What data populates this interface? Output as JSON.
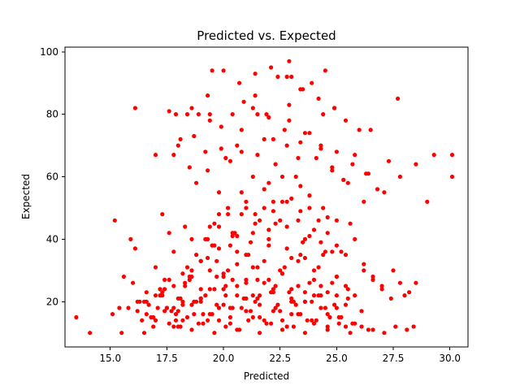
{
  "chart_data": {
    "type": "scatter",
    "title": "Predicted vs. Expected",
    "xlabel": "Predicted",
    "ylabel": "Expected",
    "xlim": [
      13.0,
      30.8
    ],
    "ylim": [
      5.5,
      101.5
    ],
    "xticks": [
      15.0,
      17.5,
      20.0,
      22.5,
      25.0,
      27.5,
      30.0
    ],
    "xtick_labels": [
      "15.0",
      "17.5",
      "20.0",
      "22.5",
      "25.0",
      "27.5",
      "30.0"
    ],
    "yticks": [
      20,
      40,
      60,
      80,
      100
    ],
    "ytick_labels": [
      "20",
      "40",
      "60",
      "80",
      "100"
    ],
    "grid": false,
    "legend": "none",
    "marker_color": "#ff0000",
    "series": [
      {
        "x": [
          13.5,
          14.1,
          15.1,
          15.2,
          15.4,
          15.6,
          15.9,
          16.1,
          16.4,
          16.6,
          16.9,
          16.8,
          17.1,
          17.3,
          17.6,
          17.9,
          16.2,
          16.7,
          17.0,
          17.2,
          17.5,
          17.8,
          18.1,
          18.4,
          18.6,
          18.9,
          19.2,
          19.5,
          19.8,
          20.1,
          20.4,
          20.7,
          21.0,
          21.3,
          21.6,
          21.9,
          22.2,
          22.5,
          22.8,
          23.1,
          23.4,
          23.7,
          24.0,
          24.3,
          24.6,
          24.9,
          25.2,
          25.5,
          25.8,
          26.1,
          26.4,
          16.5,
          16.9,
          17.3,
          17.7,
          18.0,
          18.3,
          18.7,
          19.0,
          19.3,
          19.7,
          20.0,
          20.3,
          20.6,
          21.0,
          21.3,
          21.6,
          22.0,
          22.3,
          22.6,
          23.0,
          23.3,
          23.6,
          24.0,
          24.3,
          24.7,
          25.0,
          25.4,
          17.4,
          17.8,
          18.2,
          18.5,
          18.8,
          19.1,
          19.4,
          19.7,
          20.0,
          20.3,
          20.6,
          20.9,
          21.2,
          21.5,
          21.8,
          22.1,
          22.4,
          22.7,
          23.0,
          23.3,
          23.6,
          23.9,
          24.2,
          24.5,
          24.8,
          25.1,
          25.4,
          25.7,
          17.2,
          17.6,
          18.0,
          18.4,
          18.7,
          19.0,
          19.4,
          19.7,
          20.1,
          20.4,
          20.8,
          21.1,
          21.5,
          21.8,
          22.2,
          22.5,
          22.9,
          23.2,
          23.6,
          23.9,
          24.3,
          24.6,
          25.0,
          17.5,
          17.9,
          18.3,
          18.6,
          19.0,
          19.3,
          19.6,
          20.0,
          20.3,
          20.6,
          21.0,
          21.3,
          21.6,
          22.0,
          22.3,
          22.6,
          23.0,
          23.3,
          23.6,
          24.0,
          18.0,
          18.5,
          19.0,
          19.5,
          20.0,
          20.5,
          21.0,
          21.5,
          22.0,
          22.5,
          23.0,
          23.5,
          24.0,
          24.5,
          25.0,
          25.5,
          18.2,
          18.8,
          19.3,
          19.8,
          20.3,
          20.8,
          21.3,
          21.8,
          22.3,
          22.8,
          23.3,
          23.8,
          24.3,
          24.8,
          19.0,
          19.6,
          20.2,
          20.8,
          21.4,
          22.0,
          22.6,
          23.2,
          23.8,
          24.4,
          25.0,
          17.6,
          18.1,
          18.6,
          19.1,
          19.6,
          20.1,
          20.6,
          21.1,
          21.6,
          22.1,
          22.6,
          23.1,
          23.6,
          24.1,
          24.6,
          25.1,
          25.6,
          26.1,
          26.6,
          27.1,
          27.6,
          28.1,
          15.5,
          15.8,
          16.0,
          16.3,
          16.6,
          17.0,
          17.4,
          17.8,
          18.2,
          18.6,
          19.0,
          19.4,
          19.8,
          20.2,
          20.6,
          21.0,
          21.4,
          21.8,
          22.2,
          22.6,
          23.0,
          23.4,
          23.8,
          24.2,
          24.6,
          25.0,
          25.4,
          25.8,
          26.2,
          26.6,
          27.0,
          27.4,
          27.8,
          28.2,
          16.2,
          16.6,
          17.0,
          17.4,
          17.8,
          18.2,
          18.6,
          19.0,
          19.4,
          19.8,
          20.2,
          20.6,
          21.0,
          21.4,
          21.8,
          22.2,
          22.6,
          23.0,
          23.4,
          23.8,
          24.2,
          24.6,
          25.0,
          25.4,
          25.8,
          26.2,
          26.6,
          27.0,
          27.5,
          28.0,
          28.5,
          29.0,
          17.3,
          17.8,
          18.3,
          18.8,
          19.3,
          19.8,
          20.3,
          20.8,
          21.3,
          21.8,
          22.3,
          22.8,
          23.3,
          23.8,
          24.3,
          24.8,
          25.3,
          25.8,
          26.3,
          26.8,
          27.3,
          27.8,
          28.5,
          29.3,
          30.1,
          18.0,
          18.7,
          19.4,
          20.1,
          20.8,
          21.5,
          22.2,
          22.9,
          23.6,
          24.3,
          25.0,
          25.7,
          26.4,
          27.1,
          18.5,
          19.2,
          19.9,
          20.6,
          21.3,
          22.0,
          22.7,
          23.4,
          24.1,
          24.8,
          25.5,
          26.2,
          17.0,
          18.1,
          18.4,
          18.9,
          19.4,
          19.9,
          20.4,
          20.9,
          21.4,
          21.9,
          22.4,
          22.9,
          23.4,
          23.9,
          24.4,
          24.9,
          25.4,
          26.0,
          26.5,
          17.9,
          18.6,
          19.3,
          20.0,
          20.7,
          21.4,
          22.1,
          22.8,
          23.5,
          24.2,
          24.9,
          25.6,
          19.2,
          19.8,
          20.4,
          21.0,
          21.6,
          22.2,
          22.8,
          23.4,
          24.0,
          24.6,
          25.2,
          19.6,
          20.4,
          21.2,
          22.0,
          22.8,
          23.6,
          24.4,
          16.1,
          17.6,
          22.9,
          21.5,
          23.0,
          24.5,
          19.5,
          27.7,
          16.5,
          28.4,
          30.1
        ],
        "y": [
          15,
          10,
          16,
          46,
          18,
          28,
          40,
          37,
          14,
          20,
          12,
          15,
          18,
          22,
          13,
          16,
          17,
          19,
          14,
          24,
          18,
          12,
          21,
          15,
          19,
          13,
          22,
          16,
          14,
          25,
          18,
          11,
          21,
          15,
          19,
          13,
          23,
          17,
          12,
          20,
          16,
          14,
          22,
          18,
          12,
          19,
          15,
          21,
          13,
          17,
          11,
          20,
          15,
          23,
          17,
          12,
          26,
          16,
          21,
          14,
          28,
          19,
          13,
          25,
          17,
          22,
          15,
          27,
          18,
          14,
          24,
          16,
          20,
          13,
          22,
          15,
          18,
          12,
          24,
          18,
          14,
          28,
          20,
          16,
          30,
          19,
          24,
          15,
          32,
          21,
          17,
          27,
          14,
          23,
          19,
          31,
          16,
          25,
          20,
          14,
          22,
          18,
          26,
          15,
          19,
          13,
          22,
          27,
          17,
          31,
          20,
          24,
          16,
          33,
          22,
          27,
          18,
          35,
          21,
          26,
          17,
          30,
          23,
          19,
          34,
          20,
          25,
          16,
          22,
          18,
          14,
          25,
          30,
          20,
          34,
          24,
          28,
          18,
          36,
          26,
          31,
          22,
          38,
          25,
          29,
          20,
          33,
          23,
          27,
          21,
          27,
          33,
          38,
          29,
          42,
          35,
          31,
          40,
          46,
          34,
          39,
          30,
          36,
          28,
          24,
          20,
          35,
          40,
          44,
          38,
          48,
          42,
          50,
          45,
          52,
          46,
          41,
          39,
          36,
          33,
          45,
          50,
          55,
          48,
          58,
          52,
          60,
          54,
          50,
          46,
          42,
          12,
          11,
          13,
          10,
          12,
          11,
          14,
          10,
          13,
          11,
          12,
          10,
          14,
          11,
          13,
          10,
          12,
          11,
          10,
          12,
          11,
          10,
          18,
          26,
          20,
          16,
          22,
          17,
          25,
          19,
          28,
          21,
          24,
          18,
          30,
          22,
          27,
          20,
          33,
          24,
          29,
          21,
          35,
          26,
          31,
          23,
          28,
          25,
          22,
          30,
          27,
          24,
          21,
          26,
          23,
          20,
          23,
          31,
          27,
          36,
          29,
          40,
          33,
          44,
          37,
          48,
          41,
          52,
          45,
          56,
          49,
          60,
          53,
          57,
          50,
          46,
          42,
          38,
          35,
          40,
          32,
          28,
          25,
          30,
          22,
          26,
          52,
          48,
          67,
          44,
          58,
          62,
          55,
          65,
          68,
          60,
          72,
          64,
          70,
          66,
          74,
          69,
          63,
          59,
          67,
          61,
          56,
          65,
          60,
          64,
          67,
          60,
          70,
          73,
          78,
          66,
          75,
          80,
          72,
          78,
          74,
          70,
          68,
          64,
          61,
          55,
          63,
          68,
          76,
          70,
          82,
          79,
          75,
          71,
          66,
          62,
          58,
          52,
          67,
          72,
          80,
          80,
          80,
          69,
          80,
          84,
          86,
          80,
          92,
          83,
          88,
          90,
          80,
          82,
          78,
          75,
          75,
          80,
          82,
          86,
          94,
          90,
          93,
          95,
          92,
          88,
          85,
          82,
          45,
          40,
          48,
          42,
          50,
          46,
          52,
          44,
          49,
          43,
          47,
          36,
          38,
          41,
          39,
          43,
          37,
          40,
          35,
          82,
          81,
          97,
          67,
          92,
          94,
          94,
          85,
          10,
          12,
          67
        ]
      }
    ]
  }
}
